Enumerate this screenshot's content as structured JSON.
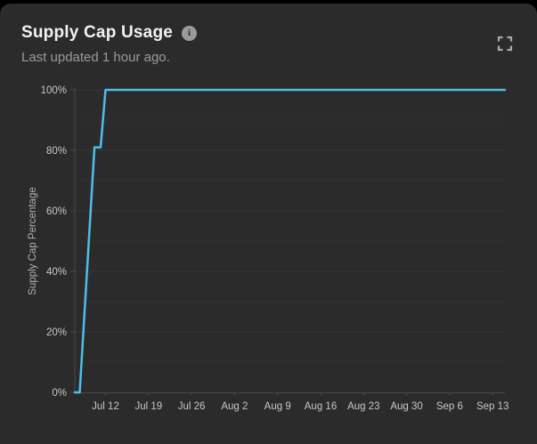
{
  "theme": {
    "page_bg": "#000000",
    "card_bg": "#2b2b2b",
    "title_color": "#f2f2f2",
    "subtitle_color": "#9a9a9a",
    "axis_tick_label_color": "#c7c7c7",
    "axis_title_color": "#b2b2b2",
    "axis_line_color": "#4a4a4a",
    "grid_minor_color": "#313131",
    "grid_major_color": "#353535",
    "line_color": "#4dbeea",
    "icon_color": "#a8a8a8"
  },
  "header": {
    "title": "Supply Cap Usage",
    "subtitle": "Last updated 1 hour ago.",
    "info_icon": {
      "name": "info-circle-icon",
      "glyph": "i"
    },
    "expand_icon": {
      "name": "expand-fullscreen-icon"
    }
  },
  "chart_data": {
    "type": "line",
    "title": "Supply Cap Usage",
    "xlabel": "",
    "ylabel": "Supply Cap Percentage",
    "ylim": [
      0,
      100
    ],
    "y_ticks": [
      0,
      20,
      40,
      60,
      80,
      100
    ],
    "y_tick_suffix": "%",
    "y_minor_step": 10,
    "grid": "horizontal-only",
    "legend": "none",
    "x_domain_days": [
      0,
      70
    ],
    "x_ticks": [
      {
        "label": "Jul 12",
        "day": 5
      },
      {
        "label": "Jul 19",
        "day": 12
      },
      {
        "label": "Jul 26",
        "day": 19
      },
      {
        "label": "Aug 2",
        "day": 26
      },
      {
        "label": "Aug 9",
        "day": 33
      },
      {
        "label": "Aug 16",
        "day": 40
      },
      {
        "label": "Aug 23",
        "day": 47
      },
      {
        "label": "Aug 30",
        "day": 54
      },
      {
        "label": "Sep 6",
        "day": 61
      },
      {
        "label": "Sep 13",
        "day": 68
      }
    ],
    "series": [
      {
        "name": "Supply Cap Percentage",
        "color": "#4dbeea",
        "points": [
          {
            "date": "Jul 7",
            "day": 0,
            "pct": 0
          },
          {
            "date": "Jul 8",
            "day": 0.8,
            "pct": 0
          },
          {
            "date": "Jul 10",
            "day": 3.2,
            "pct": 81
          },
          {
            "date": "Jul 11",
            "day": 4.2,
            "pct": 81
          },
          {
            "date": "Jul 12",
            "day": 5,
            "pct": 100
          },
          {
            "date": "Sep 15",
            "day": 70,
            "pct": 100
          }
        ]
      }
    ]
  }
}
